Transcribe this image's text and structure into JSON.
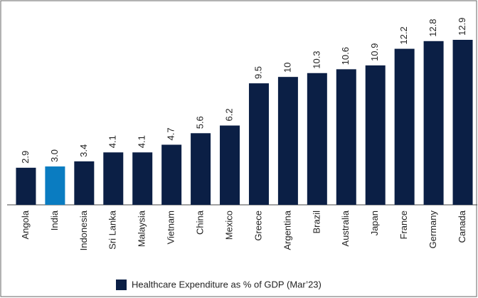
{
  "chart_data": {
    "type": "bar",
    "categories": [
      "Angola",
      "India",
      "Indonesia",
      "Sri Lanka",
      "Malaysia",
      "Vietnam",
      "China",
      "Mexico",
      "Greece",
      "Argentina",
      "Brazil",
      "Australia",
      "Japan",
      "France",
      "Germany",
      "Canada"
    ],
    "series": [
      {
        "name": "Healthcare Expenditure as % of GDP (Mar’23)",
        "color": "#0b1f45",
        "colors": [
          "#0b1f45",
          "#0a7cc1",
          "#0b1f45",
          "#0b1f45",
          "#0b1f45",
          "#0b1f45",
          "#0b1f45",
          "#0b1f45",
          "#0b1f45",
          "#0b1f45",
          "#0b1f45",
          "#0b1f45",
          "#0b1f45",
          "#0b1f45",
          "#0b1f45",
          "#0b1f45"
        ],
        "values": [
          2.9,
          3.0,
          3.4,
          4.1,
          4.1,
          4.7,
          5.6,
          6.2,
          9.5,
          10,
          10.3,
          10.6,
          10.9,
          12.2,
          12.8,
          12.9
        ],
        "value_labels": [
          "2.9",
          "3.0",
          "3.4",
          "4.1",
          "4.1",
          "4.7",
          "5.6",
          "6.2",
          "9.5",
          "10",
          "10.3",
          "10.6",
          "10.9",
          "12.2",
          "12.8",
          "12.9"
        ]
      }
    ],
    "legend": "bottom"
  }
}
